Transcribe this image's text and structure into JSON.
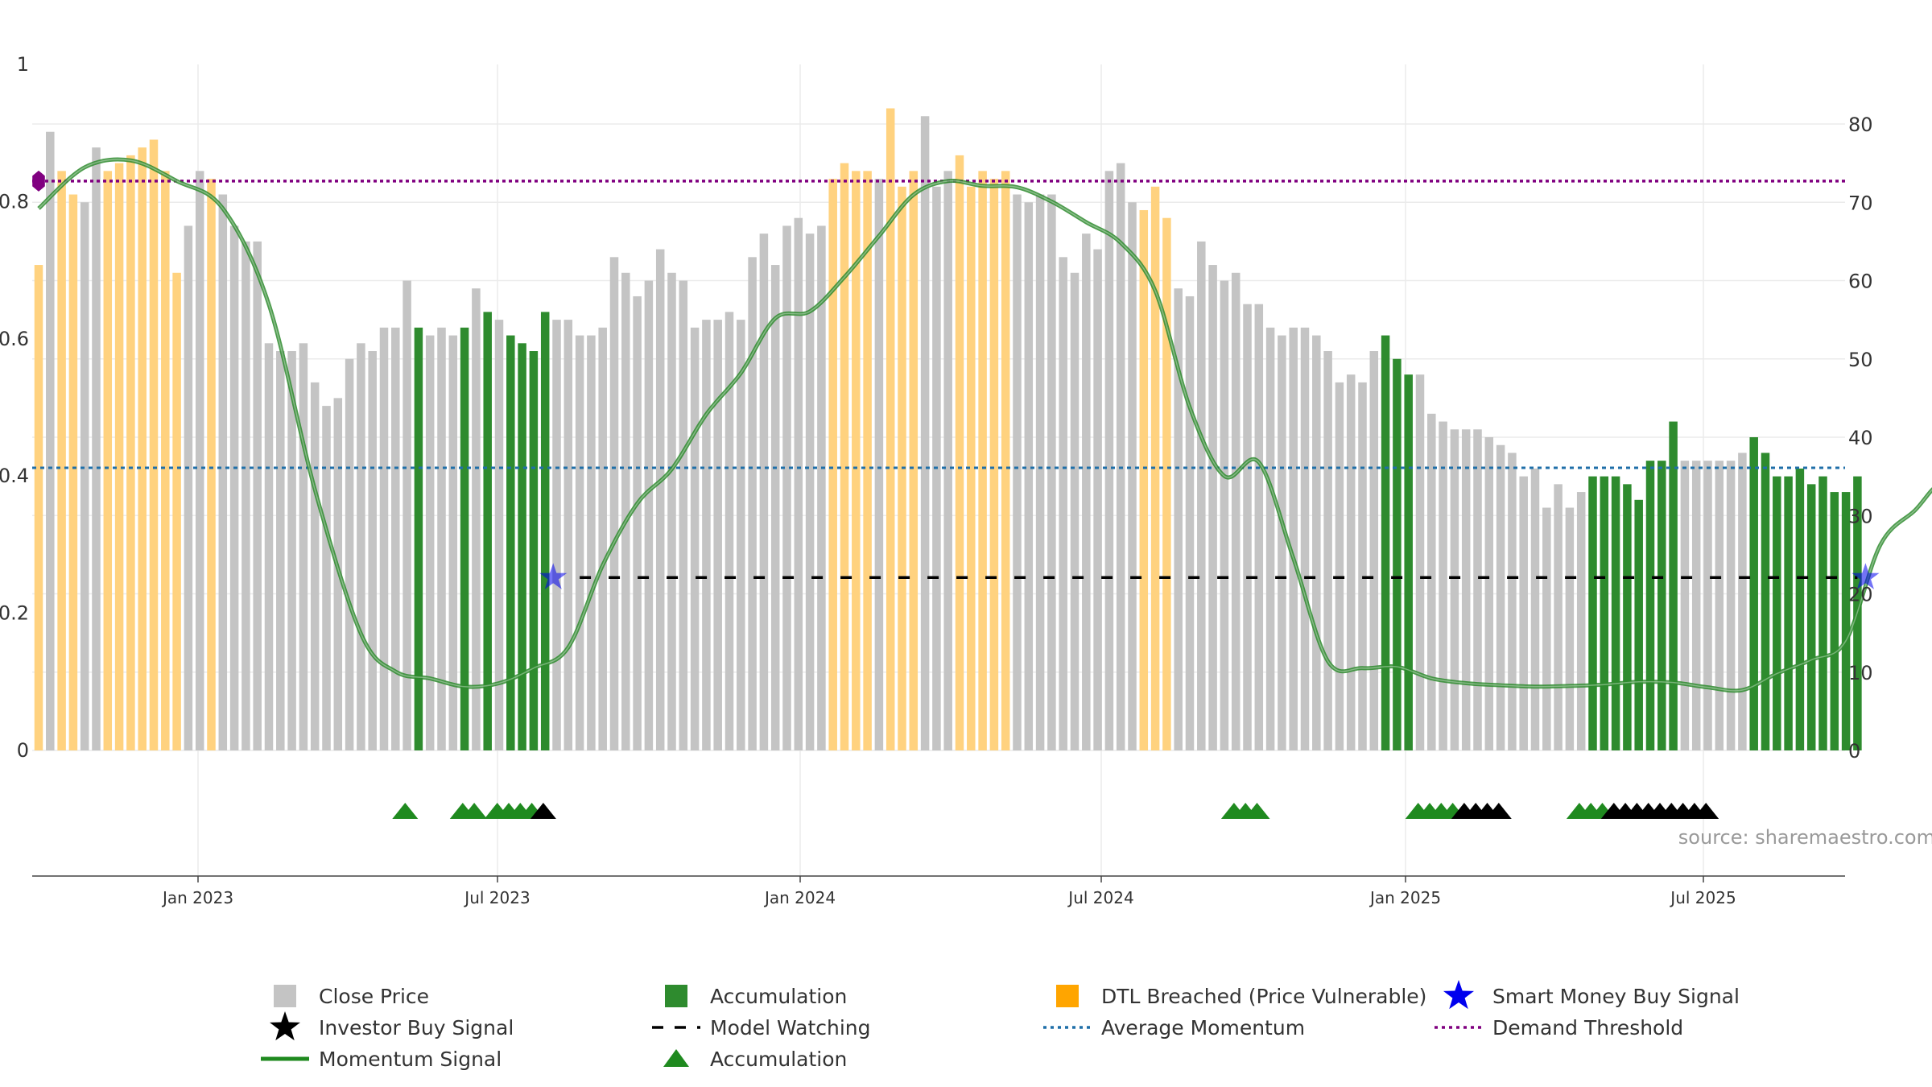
{
  "chart_data": {
    "type": "bar",
    "source": "source: sharemaestro.com",
    "x_ticks": [
      "Jan 2023",
      "Jul 2023",
      "Jan 2024",
      "Jul 2024",
      "Jan 2025",
      "Jul 2025"
    ],
    "left_axis": {
      "ticks": [
        "0",
        "0.2",
        "0.4",
        "0.6",
        "0.8",
        "1"
      ],
      "ylim": [
        0,
        1
      ]
    },
    "right_axis": {
      "ticks": [
        "0",
        "10",
        "20",
        "30",
        "40",
        "50",
        "60",
        "70",
        "80"
      ],
      "ylim": [
        0,
        80
      ]
    },
    "grid": true,
    "colors": {
      "close": "#c4c4c4",
      "accumulation": "#2e8b2e",
      "dtl": "#ffd27f",
      "momentum": "#2e8b2e",
      "smart_money": "#0000ee",
      "investor": "#000000",
      "watching": "#000000",
      "avg_momentum": "#1f6fa8",
      "demand": "#800080",
      "triangle_green": "#1f8a1f",
      "triangle_black": "#000000"
    },
    "bar_types": "DCDDCCDDDDDDDCCDCCCCCCCCCCCCCCCCCACCCACACAAAACCCCCCCCCCCCCCCCCCCCCCCCDDDDCDDDCCCDDDDDCCCCCCCCCCCDDDCCCCCCCCCCCCCCCCCCAAACCCCCCCCCCCCCCCAAAAAAAACCCCCCAAAAAAAAAAAACCCCCCCCC",
    "bar_values": [
      62,
      79,
      74,
      71,
      70,
      77,
      74,
      75,
      76,
      77,
      78,
      74,
      61,
      67,
      74,
      73,
      71,
      67,
      65,
      65,
      52,
      51,
      51,
      52,
      47,
      44,
      45,
      50,
      52,
      51,
      54,
      54,
      60,
      54,
      53,
      54,
      53,
      54,
      59,
      56,
      55,
      53,
      52,
      51,
      56,
      55,
      55,
      53,
      53,
      54,
      63,
      61,
      58,
      60,
      64,
      61,
      60,
      54,
      55,
      55,
      56,
      55,
      63,
      66,
      62,
      67,
      68,
      66,
      67,
      73,
      75,
      74,
      74,
      73,
      82,
      72,
      74,
      81,
      72,
      74,
      76,
      72,
      74,
      73,
      74,
      71,
      70,
      71,
      71,
      63,
      61,
      66,
      64,
      74,
      75,
      70,
      69,
      72,
      68,
      59,
      58,
      65,
      62,
      60,
      61,
      57,
      57,
      54,
      53,
      54,
      54,
      53,
      51,
      47,
      48,
      47,
      51,
      53,
      50,
      48,
      48,
      43,
      42,
      41,
      41,
      41,
      40,
      39,
      38,
      35,
      36,
      31,
      34,
      31,
      33,
      35,
      35,
      35,
      34,
      32,
      37,
      37,
      42,
      37,
      37,
      37,
      37,
      37,
      38,
      40,
      38,
      35,
      35,
      36,
      34,
      35,
      33,
      33,
      35
    ],
    "momentum": [
      [
        0,
        0.79
      ],
      [
        4,
        0.85
      ],
      [
        8,
        0.86
      ],
      [
        12,
        0.83
      ],
      [
        16,
        0.79
      ],
      [
        20,
        0.65
      ],
      [
        24,
        0.38
      ],
      [
        28,
        0.17
      ],
      [
        31,
        0.115
      ],
      [
        34,
        0.105
      ],
      [
        37,
        0.093
      ],
      [
        40,
        0.098
      ],
      [
        43,
        0.12
      ],
      [
        46,
        0.15
      ],
      [
        49,
        0.27
      ],
      [
        52,
        0.36
      ],
      [
        55,
        0.41
      ],
      [
        58,
        0.49
      ],
      [
        61,
        0.55
      ],
      [
        64,
        0.63
      ],
      [
        67,
        0.64
      ],
      [
        70,
        0.69
      ],
      [
        73,
        0.75
      ],
      [
        76,
        0.81
      ],
      [
        79,
        0.83
      ],
      [
        82,
        0.823
      ],
      [
        85,
        0.821
      ],
      [
        88,
        0.8
      ],
      [
        91,
        0.77
      ],
      [
        94,
        0.74
      ],
      [
        97,
        0.67
      ],
      [
        100,
        0.5
      ],
      [
        103,
        0.4
      ],
      [
        106,
        0.42
      ],
      [
        109,
        0.28
      ],
      [
        112,
        0.13
      ],
      [
        115,
        0.12
      ],
      [
        118,
        0.122
      ],
      [
        121,
        0.105
      ],
      [
        124,
        0.098
      ],
      [
        127,
        0.095
      ],
      [
        130,
        0.093
      ],
      [
        133,
        0.094
      ],
      [
        136,
        0.096
      ],
      [
        139,
        0.1
      ],
      [
        142,
        0.099
      ],
      [
        145,
        0.092
      ],
      [
        148,
        0.088
      ],
      [
        151,
        0.112
      ],
      [
        154,
        0.132
      ],
      [
        157,
        0.16
      ],
      [
        160,
        0.3
      ],
      [
        163,
        0.35
      ],
      [
        165,
        0.385
      ],
      [
        166,
        0.35
      ],
      [
        167,
        0.46
      ],
      [
        169,
        0.52
      ],
      [
        170,
        0.39
      ]
    ],
    "average_momentum": 0.412,
    "demand_threshold": 0.83,
    "model_watching_level": 0.252,
    "model_watching_start": 47,
    "model_watching_end": 158,
    "smart_money_signals": [
      [
        44,
        0.252
      ],
      [
        158,
        0.252
      ]
    ],
    "demand_marker": [
      0,
      0.83
    ],
    "accumulation_triangles": [
      31,
      36,
      37,
      39,
      40,
      41,
      42,
      103,
      104,
      105,
      119,
      120,
      121,
      122,
      133,
      134,
      135
    ],
    "investor_triangles": [
      43,
      123,
      124,
      125,
      126,
      136,
      137,
      138,
      139,
      140,
      141,
      142,
      143,
      144
    ],
    "legend": [
      {
        "label": "Close Price",
        "symbol": "square",
        "color": "#c4c4c4"
      },
      {
        "label": "Accumulation",
        "symbol": "square",
        "color": "#2e8b2e"
      },
      {
        "label": "DTL Breached (Price Vulnerable)",
        "symbol": "square",
        "color": "#ffa500"
      },
      {
        "label": "Smart Money Buy Signal",
        "symbol": "star",
        "color": "#0000ee"
      },
      {
        "label": "Investor Buy Signal",
        "symbol": "star",
        "color": "#000000"
      },
      {
        "label": "Model Watching",
        "symbol": "dash",
        "color": "#000000"
      },
      {
        "label": "Average Momentum",
        "symbol": "dot",
        "color": "#1f6fa8"
      },
      {
        "label": "Demand Threshold",
        "symbol": "dot",
        "color": "#800080"
      },
      {
        "label": "Momentum Signal",
        "symbol": "line",
        "color": "#1f8a1f"
      },
      {
        "label": "Accumulation",
        "symbol": "triangle",
        "color": "#1f8a1f"
      }
    ]
  }
}
